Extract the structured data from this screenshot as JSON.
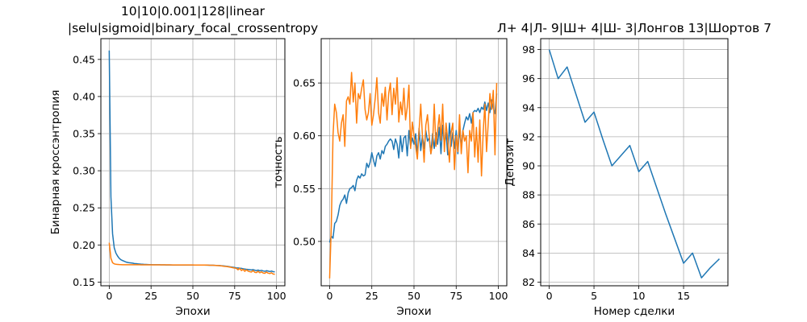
{
  "colors": {
    "series_1": "#1f77b4",
    "series_2": "#ff7f0e",
    "grid": "#b0b0b0"
  },
  "chart_data": [
    {
      "type": "line",
      "title_lines": [
        "10|10|0.001|128|linear",
        "|selu|sigmoid|binary_focal_crossentropy"
      ],
      "xlabel": "Эпохи",
      "ylabel": "Бинарная кроссэнтропия",
      "xlim": [
        -5,
        105
      ],
      "ylim": [
        0.145,
        0.478
      ],
      "xticks": [
        0,
        25,
        50,
        75,
        100
      ],
      "yticks": [
        0.15,
        0.2,
        0.25,
        0.3,
        0.35,
        0.4,
        0.45
      ],
      "ytick_labels": [
        "0.15",
        "0.20",
        "0.25",
        "0.30",
        "0.35",
        "0.40",
        "0.45"
      ],
      "grid": true,
      "series": [
        {
          "color_key": "series_1",
          "y": [
            0.462,
            0.265,
            0.215,
            0.196,
            0.189,
            0.185,
            0.182,
            0.18,
            0.179,
            0.178,
            0.177,
            0.1765,
            0.176,
            0.1758,
            0.1755,
            0.175,
            0.1748,
            0.1745,
            0.1743,
            0.1741,
            0.174,
            0.1738,
            0.1737,
            0.1736,
            0.1735,
            0.1735,
            0.1734,
            0.1734,
            0.1733,
            0.1733,
            0.1733,
            0.1732,
            0.1732,
            0.1732,
            0.1731,
            0.1731,
            0.1731,
            0.1731,
            0.173,
            0.173,
            0.173,
            0.173,
            0.173,
            0.173,
            0.173,
            0.173,
            0.173,
            0.173,
            0.173,
            0.173,
            0.173,
            0.173,
            0.173,
            0.173,
            0.1729,
            0.1729,
            0.1729,
            0.1729,
            0.1728,
            0.1728,
            0.1727,
            0.1727,
            0.1726,
            0.1725,
            0.1724,
            0.1723,
            0.1722,
            0.172,
            0.1718,
            0.1716,
            0.1713,
            0.171,
            0.1707,
            0.1703,
            0.17,
            0.1696,
            0.1692,
            0.169,
            0.1687,
            0.1685,
            0.168,
            0.1675,
            0.1672,
            0.167,
            0.1667,
            0.1663,
            0.1668,
            0.166,
            0.1655,
            0.1662,
            0.1652,
            0.1658,
            0.165,
            0.1645,
            0.1653,
            0.1648,
            0.1642,
            0.1648,
            0.164,
            0.1638
          ]
        },
        {
          "color_key": "series_2",
          "y": [
            0.203,
            0.182,
            0.176,
            0.1745,
            0.174,
            0.1738,
            0.1736,
            0.1735,
            0.1734,
            0.1734,
            0.1734,
            0.1734,
            0.1733,
            0.1733,
            0.1733,
            0.1733,
            0.1733,
            0.1733,
            0.1733,
            0.1732,
            0.1732,
            0.1732,
            0.1732,
            0.1732,
            0.1732,
            0.1732,
            0.1732,
            0.1732,
            0.1732,
            0.1732,
            0.1732,
            0.1732,
            0.1732,
            0.1732,
            0.1732,
            0.1732,
            0.1732,
            0.1731,
            0.1731,
            0.1731,
            0.1731,
            0.1731,
            0.1731,
            0.1731,
            0.1731,
            0.1731,
            0.1731,
            0.1731,
            0.1731,
            0.1731,
            0.1731,
            0.173,
            0.173,
            0.173,
            0.173,
            0.173,
            0.173,
            0.1729,
            0.1729,
            0.1728,
            0.1727,
            0.1727,
            0.1726,
            0.1725,
            0.1723,
            0.1722,
            0.172,
            0.1718,
            0.1715,
            0.1712,
            0.171,
            0.1706,
            0.1702,
            0.1698,
            0.1693,
            0.1688,
            0.1685,
            0.1665,
            0.1685,
            0.1655,
            0.1672,
            0.1645,
            0.1665,
            0.1648,
            0.164,
            0.1635,
            0.1655,
            0.1632,
            0.1628,
            0.1645,
            0.1625,
            0.1638,
            0.1622,
            0.1618,
            0.1635,
            0.162,
            0.1615,
            0.1625,
            0.1608,
            0.1605
          ]
        }
      ]
    },
    {
      "type": "line",
      "title_lines": [],
      "xlabel": "Эпохи",
      "ylabel": "точность",
      "xlim": [
        -5,
        105
      ],
      "ylim": [
        0.458,
        0.692
      ],
      "xticks": [
        0,
        25,
        50,
        75,
        100
      ],
      "yticks": [
        0.5,
        0.55,
        0.6,
        0.65
      ],
      "ytick_labels": [
        "0.50",
        "0.55",
        "0.60",
        "0.65"
      ],
      "grid": true,
      "series": [
        {
          "color_key": "series_1",
          "y": [
            0.499,
            0.505,
            0.503,
            0.517,
            0.519,
            0.525,
            0.534,
            0.538,
            0.54,
            0.544,
            0.536,
            0.546,
            0.55,
            0.551,
            0.553,
            0.548,
            0.558,
            0.562,
            0.56,
            0.564,
            0.562,
            0.563,
            0.574,
            0.57,
            0.575,
            0.584,
            0.577,
            0.571,
            0.581,
            0.584,
            0.578,
            0.586,
            0.583,
            0.59,
            0.592,
            0.595,
            0.597,
            0.595,
            0.587,
            0.597,
            0.592,
            0.579,
            0.6,
            0.585,
            0.598,
            0.6,
            0.581,
            0.605,
            0.59,
            0.598,
            0.592,
            0.602,
            0.581,
            0.607,
            0.586,
            0.6,
            0.588,
            0.605,
            0.595,
            0.598,
            0.583,
            0.602,
            0.588,
            0.603,
            0.592,
            0.608,
            0.583,
            0.61,
            0.592,
            0.603,
            0.582,
            0.612,
            0.59,
            0.603,
            0.588,
            0.605,
            0.583,
            0.607,
            0.59,
            0.605,
            0.612,
            0.618,
            0.615,
            0.621,
            0.612,
            0.622,
            0.624,
            0.623,
            0.626,
            0.622,
            0.627,
            0.625,
            0.632,
            0.624,
            0.631,
            0.622,
            0.634,
            0.626,
            0.621,
            0.64
          ]
        },
        {
          "color_key": "series_2",
          "y": [
            0.465,
            0.515,
            0.6,
            0.63,
            0.622,
            0.603,
            0.595,
            0.612,
            0.62,
            0.59,
            0.633,
            0.637,
            0.63,
            0.66,
            0.632,
            0.65,
            0.612,
            0.64,
            0.635,
            0.645,
            0.653,
            0.625,
            0.615,
            0.622,
            0.64,
            0.61,
            0.62,
            0.635,
            0.655,
            0.622,
            0.612,
            0.64,
            0.628,
            0.646,
            0.615,
            0.64,
            0.65,
            0.62,
            0.645,
            0.63,
            0.655,
            0.613,
            0.632,
            0.62,
            0.645,
            0.615,
            0.627,
            0.648,
            0.588,
            0.613,
            0.6,
            0.59,
            0.578,
            0.605,
            0.63,
            0.6,
            0.575,
            0.61,
            0.62,
            0.6,
            0.583,
            0.592,
            0.63,
            0.59,
            0.605,
            0.62,
            0.596,
            0.63,
            0.585,
            0.612,
            0.596,
            0.575,
            0.603,
            0.612,
            0.568,
            0.6,
            0.585,
            0.62,
            0.583,
            0.605,
            0.595,
            0.6,
            0.565,
            0.605,
            0.595,
            0.622,
            0.58,
            0.608,
            0.575,
            0.615,
            0.562,
            0.603,
            0.63,
            0.585,
            0.612,
            0.64,
            0.625,
            0.643,
            0.582,
            0.65
          ]
        }
      ]
    },
    {
      "type": "line",
      "title_lines": [
        "Л+ 4|Л- 9|Ш+ 4|Ш- 3|Лонгов 13|Шортов 7"
      ],
      "xlabel": "Номер сделки",
      "ylabel": "Депозит",
      "xlim": [
        -0.95,
        19.95
      ],
      "ylim": [
        81.75,
        98.75
      ],
      "xticks": [
        0,
        5,
        10,
        15
      ],
      "yticks": [
        82,
        84,
        86,
        88,
        90,
        92,
        94,
        96,
        98
      ],
      "ytick_labels": [
        "82",
        "84",
        "86",
        "88",
        "90",
        "92",
        "94",
        "96",
        "98"
      ],
      "grid": true,
      "series": [
        {
          "color_key": "series_1",
          "y": [
            98.0,
            96.0,
            96.8,
            94.9,
            93.0,
            93.7,
            91.8,
            90.0,
            90.7,
            91.4,
            89.6,
            90.3,
            88.5,
            86.7,
            85.0,
            83.3,
            84.0,
            82.3,
            83.0,
            83.6
          ]
        }
      ]
    }
  ]
}
